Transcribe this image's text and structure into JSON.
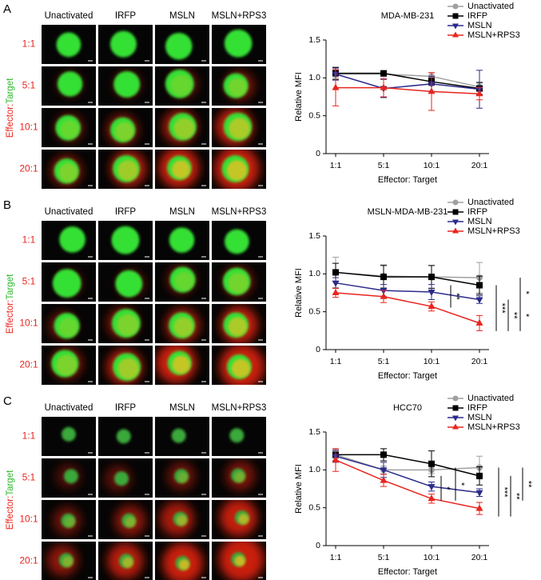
{
  "panels": [
    {
      "label": "A",
      "columns": [
        "Unactivated",
        "IRFP",
        "MSLN",
        "MSLN+RPS3"
      ],
      "rows": [
        "1:1",
        "5:1",
        "10:1",
        "20:1"
      ],
      "row_title": [
        "Effector:",
        "Target"
      ]
    },
    {
      "label": "B",
      "columns": [
        "Unactivated",
        "IRFP",
        "MSLN",
        "MSLN+RPS3"
      ],
      "rows": [
        "1:1",
        "5:1",
        "10:1",
        "20:1"
      ],
      "row_title": [
        "Effector:",
        "Target"
      ]
    },
    {
      "label": "C",
      "columns": [
        "Unactivated",
        "IRFP",
        "MSLN",
        "MSLN+RPS3"
      ],
      "rows": [
        "1:1",
        "5:1",
        "10:1",
        "20:1"
      ],
      "row_title": [
        "Effector:",
        "Target"
      ]
    }
  ],
  "chart_data": [
    {
      "type": "line",
      "title": "MDA-MB-231",
      "x_label": "Effector: Target",
      "y_label": "Relative MFI",
      "categories": [
        "1:1",
        "5:1",
        "10:1",
        "20:1"
      ],
      "series": [
        {
          "name": "Unactivated",
          "color": "#a0a0a0",
          "marker": "circle",
          "values": [
            1.05,
            1.05,
            1.02,
            0.88
          ],
          "errors": [
            0.05,
            0.03,
            0.05,
            0.05
          ]
        },
        {
          "name": "IRFP",
          "color": "#000000",
          "marker": "square",
          "values": [
            1.06,
            1.06,
            0.95,
            0.86
          ],
          "errors": [
            0.08,
            0.03,
            0.05,
            0.08
          ]
        },
        {
          "name": "MSLN",
          "color": "#2b2b8c",
          "marker": "triangle-down",
          "values": [
            1.05,
            0.86,
            0.92,
            0.85
          ],
          "errors": [
            0.08,
            0.12,
            0.1,
            0.25
          ]
        },
        {
          "name": "MSLN+RPS3",
          "color": "#e8251f",
          "marker": "triangle-up",
          "values": [
            0.87,
            0.87,
            0.82,
            0.79
          ],
          "errors": [
            0.24,
            0.12,
            0.25,
            0.08
          ]
        }
      ],
      "ylim": [
        0,
        1.5
      ],
      "yticks": [
        0,
        0.5,
        {
          "value": 1,
          "label": "1.0"
        },
        1.5
      ],
      "annotations": []
    },
    {
      "type": "line",
      "title": "MSLN-MDA-MB-231",
      "x_label": "Effector: Target",
      "y_label": "Relative MFI",
      "categories": [
        "1:1",
        "5:1",
        "10:1",
        "20:1"
      ],
      "series": [
        {
          "name": "Unactivated",
          "color": "#a0a0a0",
          "marker": "circle",
          "values": [
            1.02,
            0.97,
            0.96,
            0.95
          ],
          "errors": [
            0.2,
            0.15,
            0.15,
            0.2
          ]
        },
        {
          "name": "IRFP",
          "color": "#000000",
          "marker": "square",
          "values": [
            1.02,
            0.96,
            0.96,
            0.85
          ],
          "errors": [
            0.12,
            0.15,
            0.15,
            0.12
          ]
        },
        {
          "name": "MSLN",
          "color": "#2b2b8c",
          "marker": "triangle-down",
          "values": [
            0.88,
            0.78,
            0.76,
            0.66
          ],
          "errors": [
            0.07,
            0.08,
            0.1,
            0.05
          ]
        },
        {
          "name": "MSLN+RPS3",
          "color": "#e8251f",
          "marker": "triangle-up",
          "values": [
            0.75,
            0.7,
            0.57,
            0.35
          ],
          "errors": [
            0.06,
            0.08,
            0.06,
            0.1
          ]
        }
      ],
      "ylim": [
        0,
        1.5
      ],
      "yticks": [
        0,
        0.5,
        {
          "value": 1,
          "label": "1.0"
        },
        1.5
      ],
      "annotations": [
        "**",
        "***",
        "**",
        "*",
        "*"
      ]
    },
    {
      "type": "line",
      "title": "HCC70",
      "x_label": "Effector: Target",
      "y_label": "Relative MFI",
      "categories": [
        "1:1",
        "5:1",
        "10:1",
        "20:1"
      ],
      "series": [
        {
          "name": "Unactivated",
          "color": "#a0a0a0",
          "marker": "circle",
          "values": [
            1.2,
            1.0,
            1.0,
            1.03
          ],
          "errors": [
            0.05,
            0.05,
            0.05,
            0.15
          ]
        },
        {
          "name": "IRFP",
          "color": "#000000",
          "marker": "square",
          "values": [
            1.2,
            1.2,
            1.08,
            0.92
          ],
          "errors": [
            0.08,
            0.08,
            0.17,
            0.12
          ]
        },
        {
          "name": "MSLN",
          "color": "#2b2b8c",
          "marker": "triangle-down",
          "values": [
            1.18,
            1.0,
            0.78,
            0.7
          ],
          "errors": [
            0.08,
            0.1,
            0.06,
            0.05
          ]
        },
        {
          "name": "MSLN+RPS3",
          "color": "#e8251f",
          "marker": "triangle-up",
          "values": [
            1.13,
            0.86,
            0.62,
            0.49
          ],
          "errors": [
            0.15,
            0.08,
            0.06,
            0.08
          ]
        }
      ],
      "ylim": [
        0,
        1.5
      ],
      "yticks": [
        0,
        0.5,
        {
          "value": 1,
          "label": "1.0"
        },
        1.5
      ],
      "annotations": [
        "*",
        "*",
        "***",
        "**",
        "**"
      ]
    }
  ]
}
